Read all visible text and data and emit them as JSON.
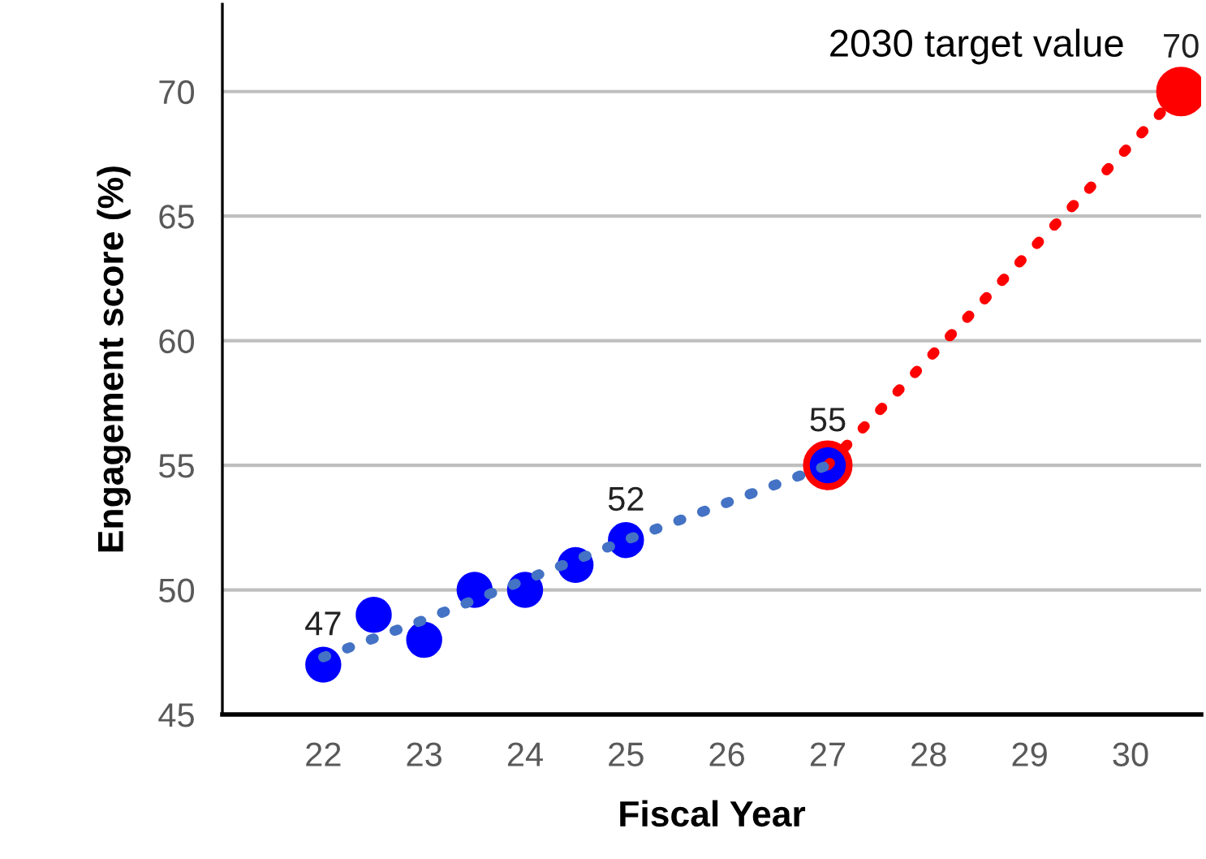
{
  "chart_data": {
    "type": "scatter",
    "xlabel": "Fiscal Year",
    "ylabel": "Engagement score (%)",
    "xlim": [
      21,
      30.7
    ],
    "xticks": [
      22,
      23,
      24,
      25,
      26,
      27,
      28,
      29,
      30
    ],
    "ylim": [
      45,
      73.5
    ],
    "yticks": [
      45,
      50,
      55,
      60,
      65,
      70
    ],
    "grid": "y",
    "annotations": [
      {
        "text": "2030 target value",
        "x": 30.5,
        "y": 70
      }
    ],
    "series": [
      {
        "type": "line",
        "color": "#4472c4",
        "x": [
          22,
          23,
          24,
          25,
          26,
          27
        ],
        "values": [
          47.3,
          48.8,
          50.4,
          52,
          53.5,
          55
        ],
        "line_style": "dotted",
        "marker": "none"
      },
      {
        "color": "#0000ff",
        "x": [
          22,
          22.5,
          23,
          23.5,
          24,
          24.5,
          25,
          27
        ],
        "values": [
          47,
          49,
          48,
          50,
          50,
          51,
          52,
          55
        ],
        "value_labels": [
          "47",
          null,
          null,
          null,
          null,
          null,
          "52",
          null
        ],
        "marker": "circle"
      },
      {
        "type": "line",
        "color": "#ff0000",
        "x": [
          27,
          30.5
        ],
        "values": [
          55,
          70
        ],
        "value_labels": [
          "55",
          "70"
        ],
        "line_style": "dotted",
        "marker": "circle"
      }
    ]
  }
}
